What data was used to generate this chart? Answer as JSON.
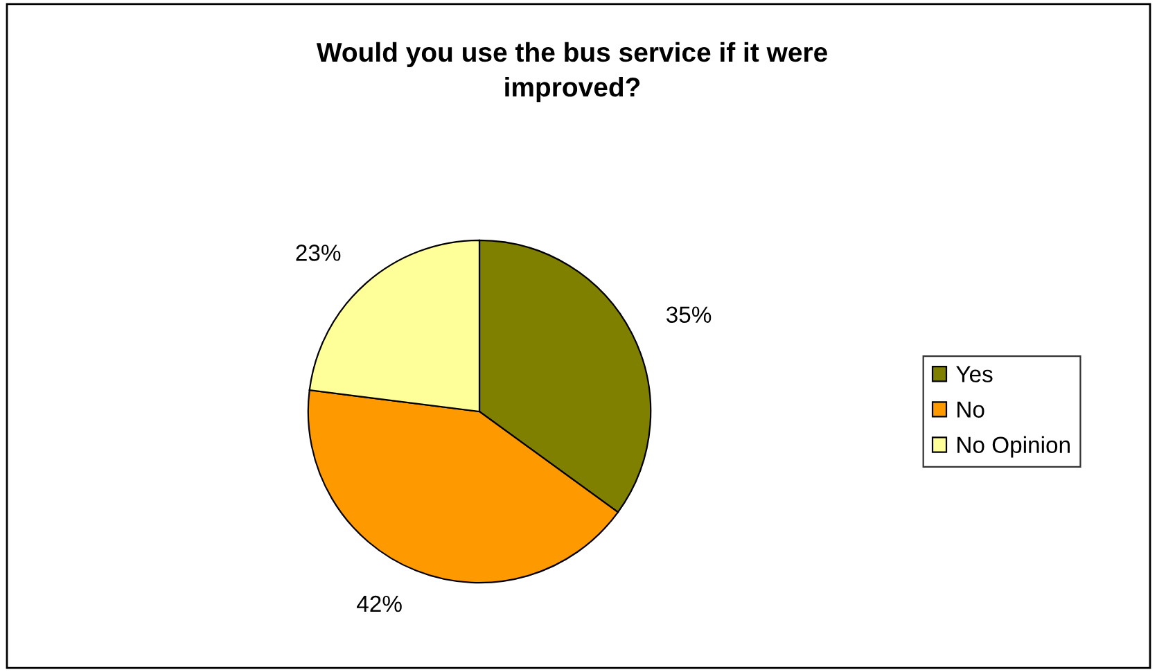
{
  "chart_data": {
    "type": "pie",
    "title": "Would you use the bus service if it were\nimproved?",
    "categories": [
      "Yes",
      "No",
      "No Opinion"
    ],
    "values": [
      35,
      42,
      23
    ],
    "value_labels": [
      "35%",
      "42%",
      "23%"
    ],
    "colors": [
      "#808000",
      "#ff9900",
      "#ffff99"
    ],
    "legend": "right"
  }
}
